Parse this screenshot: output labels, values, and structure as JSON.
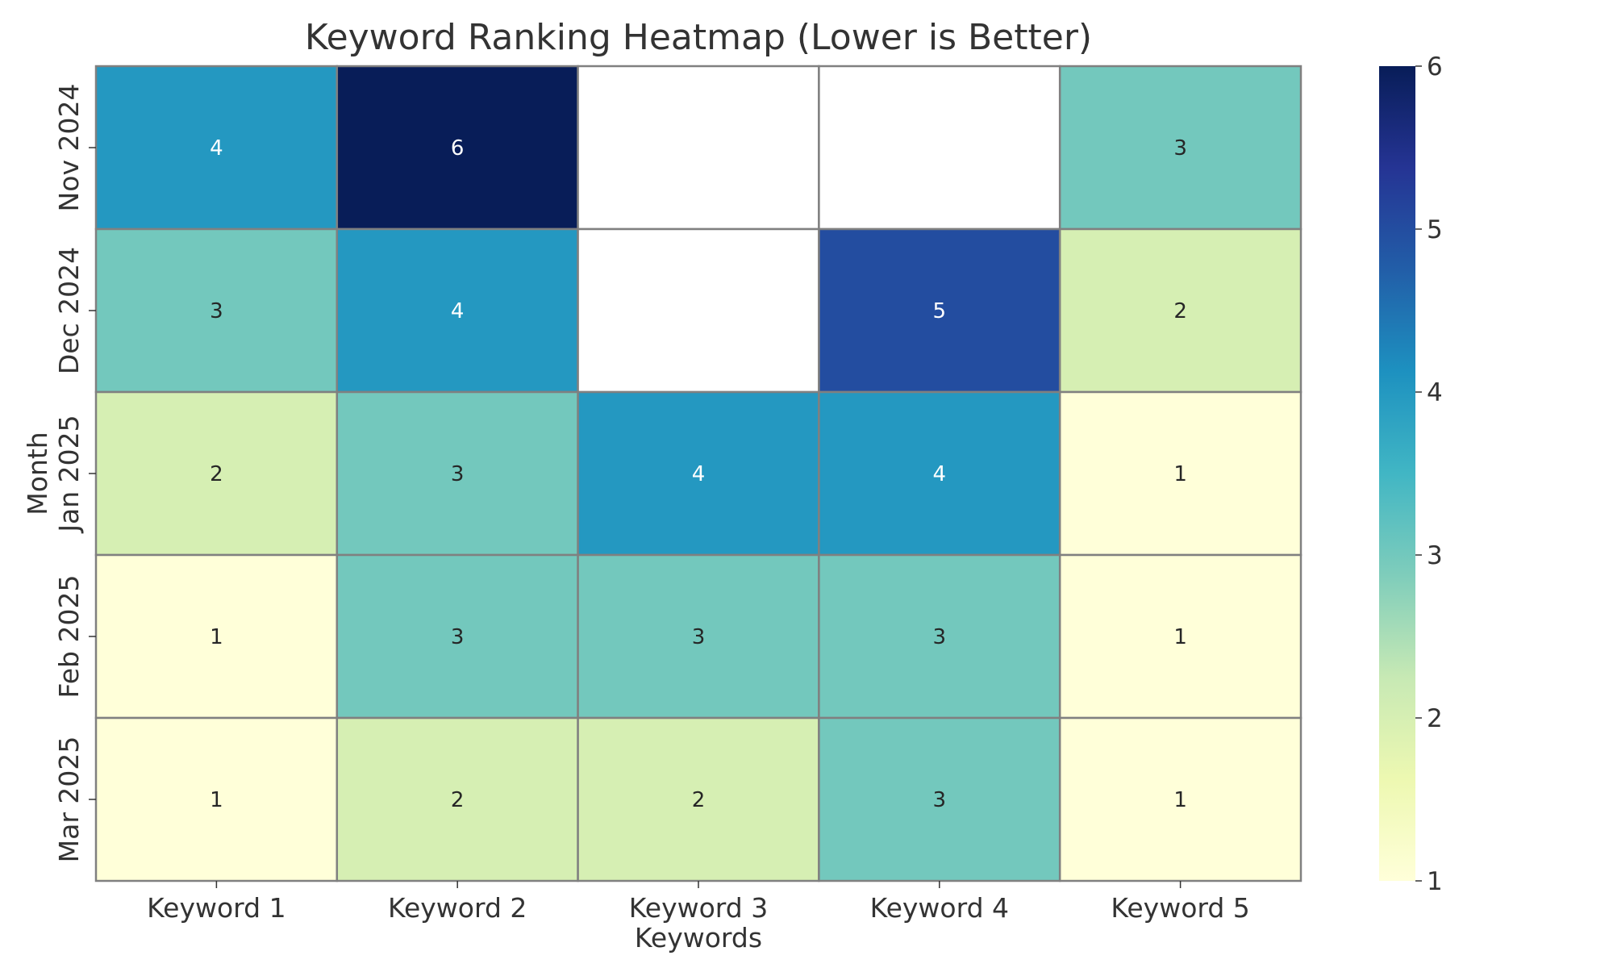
{
  "chart_data": {
    "type": "heatmap",
    "title": "Keyword Ranking Heatmap (Lower is Better)",
    "xlabel": "Keywords",
    "ylabel": "Month",
    "x_categories": [
      "Keyword 1",
      "Keyword 2",
      "Keyword 3",
      "Keyword 4",
      "Keyword 5"
    ],
    "y_categories": [
      "Nov 2024",
      "Dec 2024",
      "Jan 2025",
      "Feb 2025",
      "Mar 2025"
    ],
    "values": [
      [
        4,
        6,
        null,
        null,
        3
      ],
      [
        3,
        4,
        null,
        5,
        2
      ],
      [
        2,
        3,
        4,
        4,
        1
      ],
      [
        1,
        3,
        3,
        3,
        1
      ],
      [
        1,
        2,
        2,
        3,
        1
      ]
    ],
    "colorbar": {
      "range": [
        1,
        6
      ],
      "ticks": [
        "1",
        "2",
        "3",
        "4",
        "5",
        "6"
      ]
    },
    "colors": {
      "missing": "#ffffff",
      "cell_border": "#808080",
      "text_dark": "#262626",
      "text_light": "#ffffff",
      "scale": [
        "#ffffd9",
        "#edf8b1",
        "#c7e9b4",
        "#7fcdbb",
        "#41b6c4",
        "#1d91c0",
        "#225ea8",
        "#253494",
        "#081d58"
      ]
    }
  }
}
